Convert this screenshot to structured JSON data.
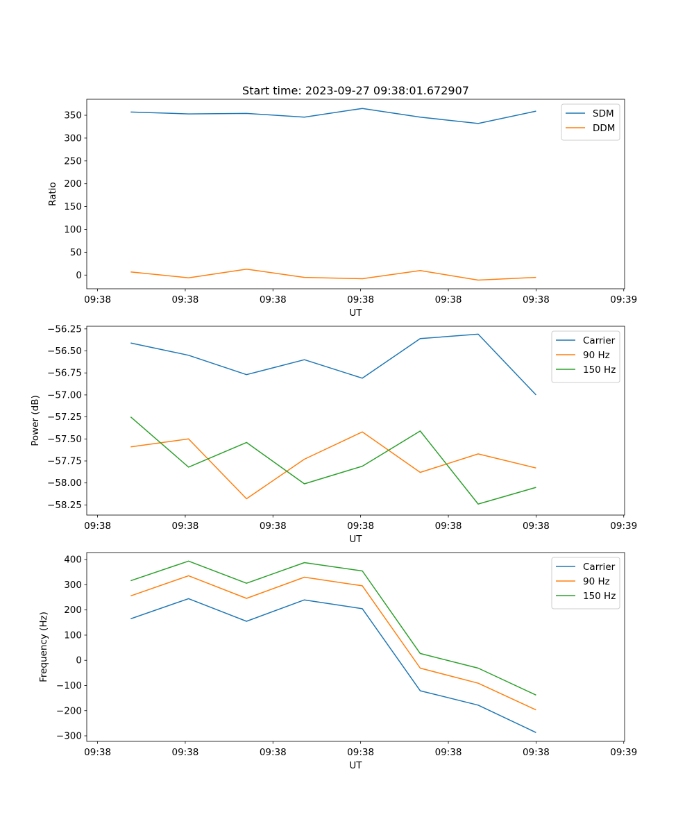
{
  "figure": {
    "title": "Start time: 2023-09-27 09:38:01.672907"
  },
  "chart_data": [
    {
      "type": "line",
      "title": "Start time: 2023-09-27 09:38:01.672907",
      "xlabel": "UT",
      "ylabel": "Ratio",
      "ylim": [
        -30,
        385
      ],
      "yticks": [
        0,
        50,
        100,
        150,
        200,
        250,
        300,
        350
      ],
      "ytick_labels": [
        "0",
        "50",
        "100",
        "150",
        "200",
        "250",
        "300",
        "350"
      ],
      "xlim": [
        -0.758,
        8.529
      ],
      "xticks": [
        -0.571,
        0.943,
        2.457,
        3.971,
        5.486,
        7.0,
        8.514
      ],
      "xtick_labels": [
        "09:38",
        "09:38",
        "09:38",
        "09:38",
        "09:38",
        "09:38",
        "09:39"
      ],
      "x": [
        0,
        1,
        2,
        3,
        4,
        5,
        6,
        7
      ],
      "series": [
        {
          "name": "SDM",
          "color": "#1f77b4",
          "values": [
            357,
            353,
            354,
            346,
            365,
            346,
            332,
            359
          ]
        },
        {
          "name": "DDM",
          "color": "#ff7f0e",
          "values": [
            7,
            -6,
            13,
            -5,
            -8,
            10,
            -11,
            -5
          ]
        }
      ],
      "legend": "top-right"
    },
    {
      "type": "line",
      "xlabel": "UT",
      "ylabel": "Power (dB)",
      "ylim": [
        -58.365,
        -56.22
      ],
      "yticks": [
        -56.25,
        -56.5,
        -56.75,
        -57.0,
        -57.25,
        -57.5,
        -57.75,
        -58.0,
        -58.25
      ],
      "ytick_labels": [
        "−56.25",
        "−56.50",
        "−56.75",
        "−57.00",
        "−57.25",
        "−57.50",
        "−57.75",
        "−58.00",
        "−58.25"
      ],
      "xlim": [
        -0.758,
        8.529
      ],
      "xticks": [
        -0.571,
        0.943,
        2.457,
        3.971,
        5.486,
        7.0,
        8.514
      ],
      "xtick_labels": [
        "09:38",
        "09:38",
        "09:38",
        "09:38",
        "09:38",
        "09:38",
        "09:39"
      ],
      "x": [
        0,
        1,
        2,
        3,
        4,
        5,
        6,
        7
      ],
      "series": [
        {
          "name": "Carrier",
          "color": "#1f77b4",
          "values": [
            -56.41,
            -56.55,
            -56.77,
            -56.6,
            -56.81,
            -56.36,
            -56.31,
            -57.0
          ]
        },
        {
          "name": "90 Hz",
          "color": "#ff7f0e",
          "values": [
            -57.59,
            -57.5,
            -58.18,
            -57.73,
            -57.42,
            -57.88,
            -57.67,
            -57.83
          ]
        },
        {
          "name": "150 Hz",
          "color": "#2ca02c",
          "values": [
            -57.25,
            -57.82,
            -57.54,
            -58.01,
            -57.81,
            -57.41,
            -58.24,
            -58.05
          ]
        }
      ],
      "legend": "top-right"
    },
    {
      "type": "line",
      "xlabel": "UT",
      "ylabel": "Frequency (Hz)",
      "ylim": [
        -322,
        428
      ],
      "yticks": [
        -300,
        -200,
        -100,
        0,
        100,
        200,
        300,
        400
      ],
      "ytick_labels": [
        "−300",
        "−200",
        "−100",
        "0",
        "100",
        "200",
        "300",
        "400"
      ],
      "xlim": [
        -0.758,
        8.529
      ],
      "xticks": [
        -0.571,
        0.943,
        2.457,
        3.971,
        5.486,
        7.0,
        8.514
      ],
      "xtick_labels": [
        "09:38",
        "09:38",
        "09:38",
        "09:38",
        "09:38",
        "09:38",
        "09:39"
      ],
      "x": [
        0,
        1,
        2,
        3,
        4,
        5,
        6,
        7
      ],
      "series": [
        {
          "name": "Carrier",
          "color": "#1f77b4",
          "values": [
            165,
            245,
            155,
            240,
            205,
            -121,
            -178,
            -287
          ]
        },
        {
          "name": "90 Hz",
          "color": "#ff7f0e",
          "values": [
            256,
            336,
            246,
            330,
            296,
            -31,
            -91,
            -197
          ]
        },
        {
          "name": "150 Hz",
          "color": "#2ca02c",
          "values": [
            316,
            394,
            306,
            388,
            355,
            27,
            -31,
            -138
          ]
        }
      ],
      "legend": "top-right"
    }
  ]
}
